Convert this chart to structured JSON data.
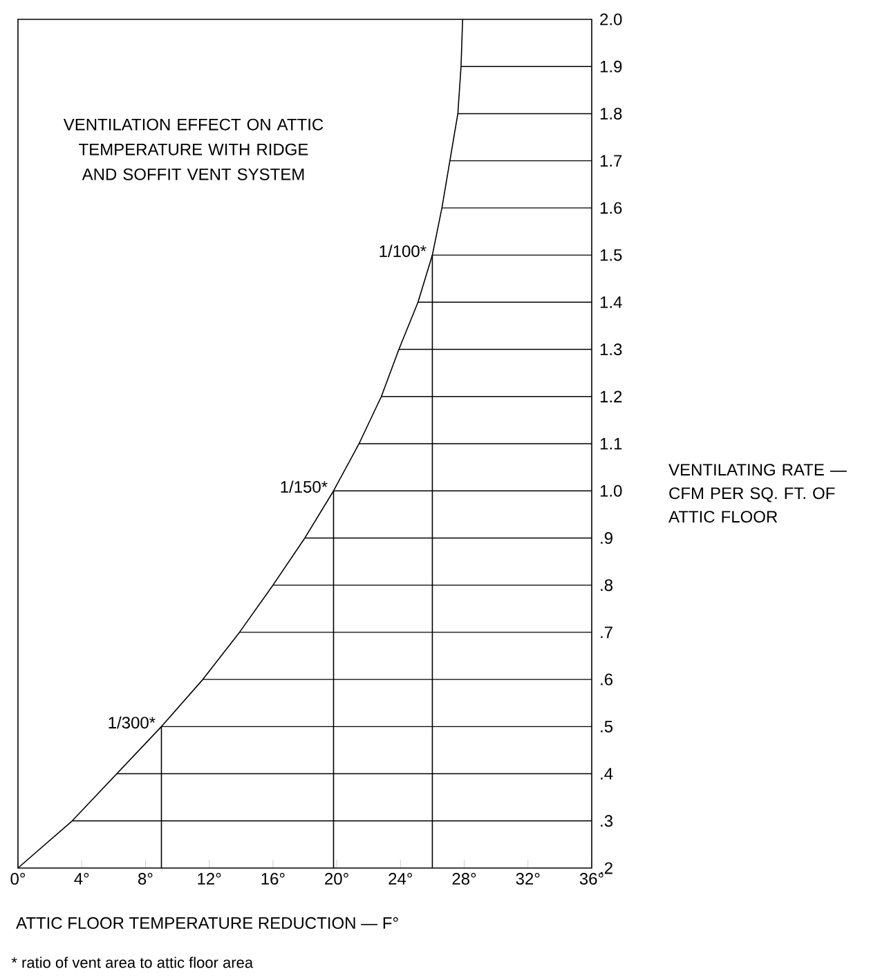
{
  "chart_data": {
    "type": "line",
    "title": "VENTILATION EFFECT ON ATTIC TEMPERATURE WITH RIDGE AND SOFFIT VENT SYSTEM",
    "xlabel": "ATTIC FLOOR TEMPERATURE REDUCTION — F°",
    "ylabel": "VENTILATING RATE — CFM PER SQ. FT. OF ATTIC FLOOR",
    "series": [
      {
        "color": "#000000",
        "x": [
          0,
          3.4,
          6.2,
          9.0,
          11.6,
          13.9,
          16.0,
          18.0,
          19.8,
          21.4,
          22.8,
          23.9,
          25.1,
          26.0,
          26.6,
          27.1,
          27.6,
          27.8,
          27.9
        ],
        "values": [
          0.2,
          0.3,
          0.4,
          0.5,
          0.6,
          0.7,
          0.8,
          0.9,
          1.0,
          1.1,
          1.2,
          1.3,
          1.4,
          1.5,
          1.6,
          1.7,
          1.8,
          1.9,
          2.0
        ]
      }
    ],
    "marker": "none",
    "line_style": "solid",
    "xlim": [
      0,
      36
    ],
    "ylim": [
      0.2,
      2.0
    ],
    "xticks": [
      {
        "value": 0,
        "label": "0°"
      },
      {
        "value": 4,
        "label": "4°"
      },
      {
        "value": 8,
        "label": "8°"
      },
      {
        "value": 12,
        "label": "12°"
      },
      {
        "value": 16,
        "label": "16°"
      },
      {
        "value": 20,
        "label": "20°"
      },
      {
        "value": 24,
        "label": "24°"
      },
      {
        "value": 28,
        "label": "28°"
      },
      {
        "value": 32,
        "label": "32°"
      },
      {
        "value": 36,
        "label": "36°"
      }
    ],
    "yticks": [
      {
        "value": 0.2,
        "label": ".2"
      },
      {
        "value": 0.3,
        "label": ".3"
      },
      {
        "value": 0.4,
        "label": ".4"
      },
      {
        "value": 0.5,
        "label": ".5"
      },
      {
        "value": 0.6,
        "label": ".6"
      },
      {
        "value": 0.7,
        "label": ".7"
      },
      {
        "value": 0.8,
        "label": ".8"
      },
      {
        "value": 0.9,
        "label": ".9"
      },
      {
        "value": 1.0,
        "label": "1.0"
      },
      {
        "value": 1.1,
        "label": "1.1"
      },
      {
        "value": 1.2,
        "label": "1.2"
      },
      {
        "value": 1.3,
        "label": "1.3"
      },
      {
        "value": 1.4,
        "label": "1.4"
      },
      {
        "value": 1.5,
        "label": "1.5"
      },
      {
        "value": 1.6,
        "label": "1.6"
      },
      {
        "value": 1.7,
        "label": "1.7"
      },
      {
        "value": 1.8,
        "label": "1.8"
      },
      {
        "value": 1.9,
        "label": "1.9"
      },
      {
        "value": 2.0,
        "label": "2.0"
      }
    ],
    "ref_lines": [
      {
        "axis": "x",
        "value": 9.0
      },
      {
        "axis": "x",
        "value": 19.8
      },
      {
        "axis": "x",
        "value": 26.0
      },
      {
        "axis": "y",
        "value": 0.3
      },
      {
        "axis": "y",
        "value": 0.4
      },
      {
        "axis": "y",
        "value": 0.5
      },
      {
        "axis": "y",
        "value": 0.6
      },
      {
        "axis": "y",
        "value": 0.7
      },
      {
        "axis": "y",
        "value": 0.8
      },
      {
        "axis": "y",
        "value": 0.9
      },
      {
        "axis": "y",
        "value": 1.0
      },
      {
        "axis": "y",
        "value": 1.1
      },
      {
        "axis": "y",
        "value": 1.2
      },
      {
        "axis": "y",
        "value": 1.3
      },
      {
        "axis": "y",
        "value": 1.4
      },
      {
        "axis": "y",
        "value": 1.5
      },
      {
        "axis": "y",
        "value": 1.6
      },
      {
        "axis": "y",
        "value": 1.7
      },
      {
        "axis": "y",
        "value": 1.8
      },
      {
        "axis": "y",
        "value": 1.9
      }
    ],
    "annotations": [
      {
        "text": "1/300*",
        "x": 9.0,
        "y": 0.5
      },
      {
        "text": "1/150*",
        "x": 19.8,
        "y": 1.0
      },
      {
        "text": "1/100*",
        "x": 26.0,
        "y": 1.5
      },
      "* ratio of vent area to attic floor area"
    ]
  }
}
